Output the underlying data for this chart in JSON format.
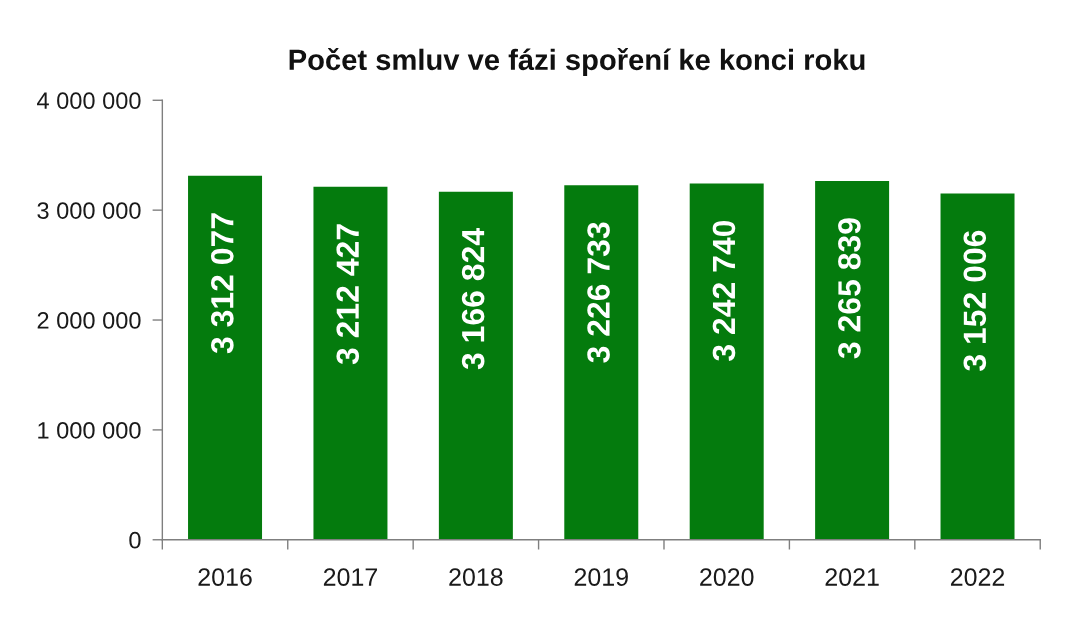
{
  "chart_data": {
    "type": "bar",
    "title": "Počet smluv ve fázi spoření ke konci roku",
    "categories": [
      "2016",
      "2017",
      "2018",
      "2019",
      "2020",
      "2021",
      "2022"
    ],
    "values": [
      3312077,
      3212427,
      3166824,
      3226733,
      3242740,
      3265839,
      3152006
    ],
    "value_labels": [
      "3 312 077",
      "3 212 427",
      "3 166 824",
      "3 226 733",
      "3 242 740",
      "3 265 839",
      "3 152 006"
    ],
    "color": "#047b0d",
    "ylim": [
      0,
      4000000
    ],
    "yticks": [
      0,
      {
        "value": 1000000,
        "label": "1 000 000"
      },
      {
        "value": 2000000,
        "label": "2 000 000"
      },
      {
        "value": 3000000,
        "label": "3 000 000"
      },
      {
        "value": 4000000,
        "label": "4 000 000"
      }
    ],
    "grid": false
  }
}
